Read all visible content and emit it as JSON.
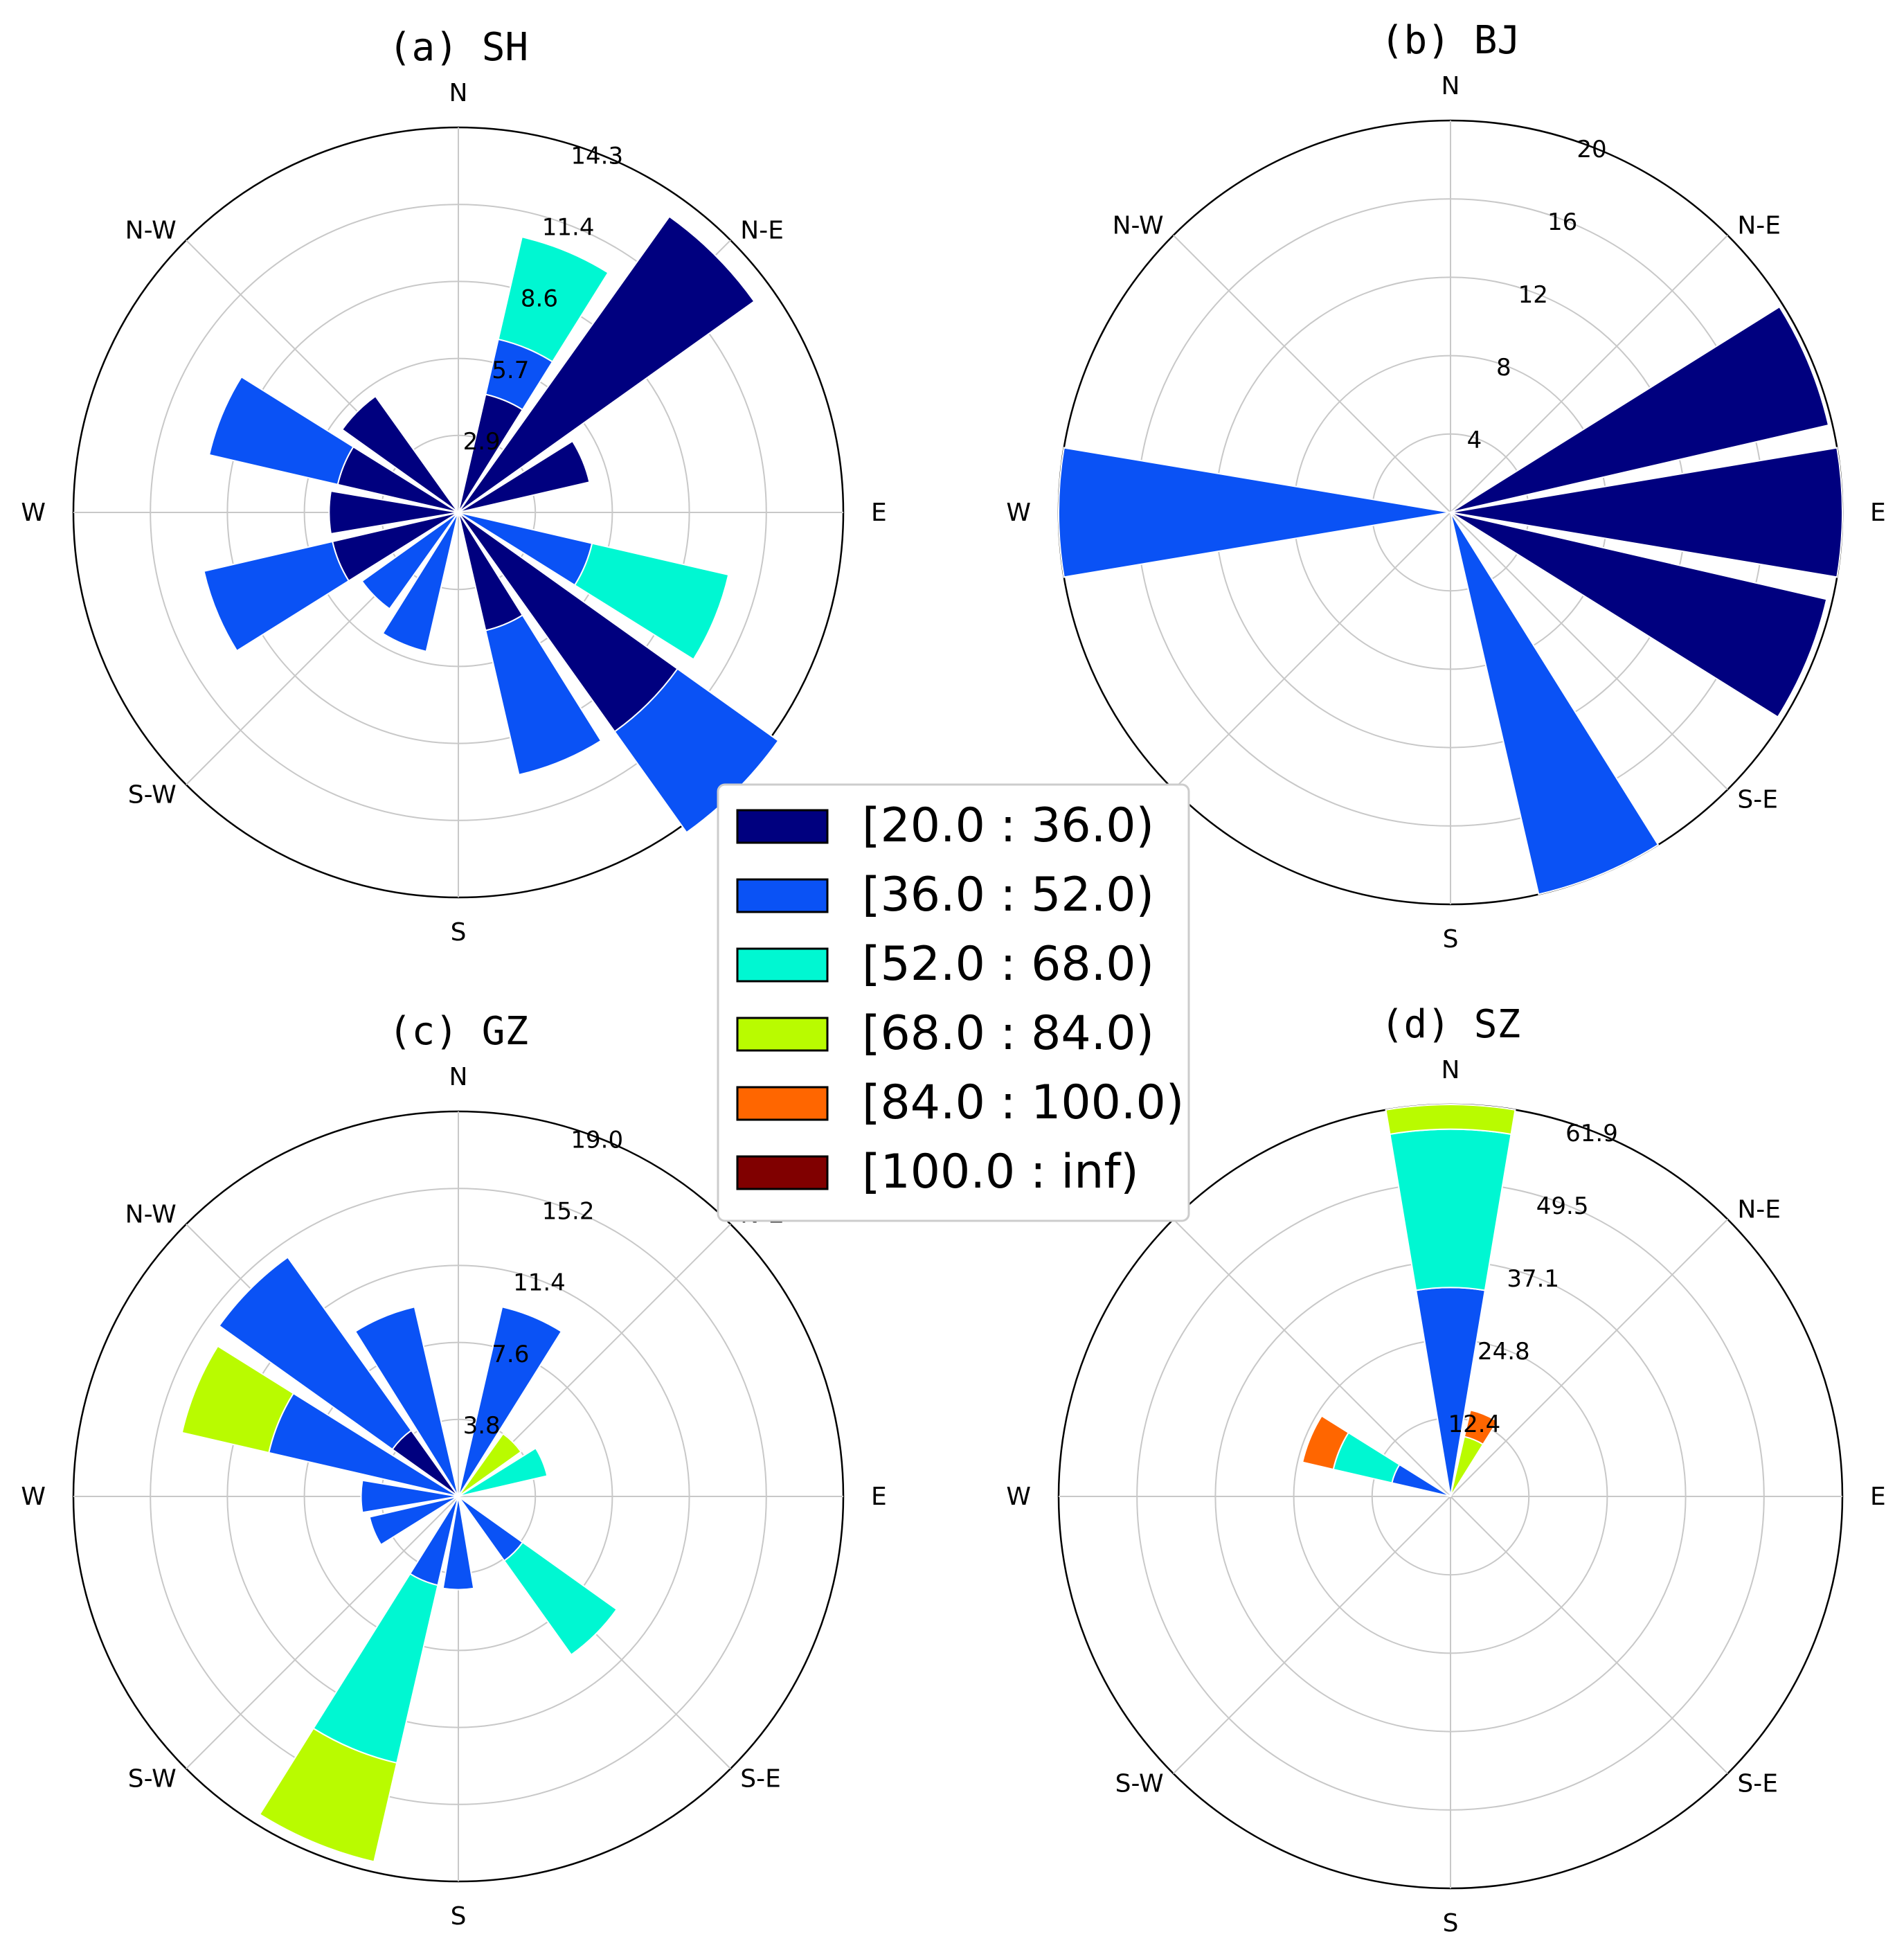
{
  "figure": {
    "legend": {
      "placement": "center",
      "entries": [
        {
          "label": "[20.0 : 36.0)",
          "color": "#00007f"
        },
        {
          "label": "[36.0 : 52.0)",
          "color": "#0a52f5"
        },
        {
          "label": "[52.0 : 68.0)",
          "color": "#00f7d2"
        },
        {
          "label": "[68.0 : 84.0)",
          "color": "#b9fb00"
        },
        {
          "label": "[84.0 : 100.0)",
          "color": "#ff6600"
        },
        {
          "label": "[100.0 : inf)",
          "color": "#800000"
        }
      ]
    },
    "directions": [
      "N",
      "N-E",
      "E",
      "S-E",
      "S",
      "S-W",
      "W",
      "N-W"
    ]
  },
  "chart_data": [
    {
      "type": "windrose",
      "title": "(a)  SH",
      "grid": true,
      "rlim": [
        0,
        14.3
      ],
      "rticks": [
        "2.9",
        "5.7",
        "8.6",
        "11.4",
        "14.3"
      ],
      "rtick_values": [
        2.86,
        5.72,
        8.58,
        11.44,
        14.3
      ],
      "sectors": [
        {
          "direction_deg": 22.5,
          "stacks": [
            {
              "bin": 0,
              "r": [
                0,
                4.5
              ]
            },
            {
              "bin": 1,
              "r": [
                4.5,
                6.6
              ]
            },
            {
              "bin": 2,
              "r": [
                6.6,
                10.5
              ]
            }
          ]
        },
        {
          "direction_deg": 45,
          "stacks": [
            {
              "bin": 0,
              "r": [
                0,
                13.5
              ]
            }
          ]
        },
        {
          "direction_deg": 67.5,
          "stacks": [
            {
              "bin": 0,
              "r": [
                0,
                5.0
              ]
            }
          ]
        },
        {
          "direction_deg": 112.5,
          "stacks": [
            {
              "bin": 1,
              "r": [
                0,
                5.1
              ]
            },
            {
              "bin": 2,
              "r": [
                5.1,
                10.3
              ]
            }
          ]
        },
        {
          "direction_deg": 135,
          "stacks": [
            {
              "bin": 0,
              "r": [
                0,
                10.0
              ]
            },
            {
              "bin": 1,
              "r": [
                10.0,
                14.6
              ]
            }
          ]
        },
        {
          "direction_deg": 157.5,
          "stacks": [
            {
              "bin": 0,
              "r": [
                0,
                4.5
              ]
            },
            {
              "bin": 1,
              "r": [
                4.5,
                10.0
              ]
            }
          ]
        },
        {
          "direction_deg": 202.5,
          "stacks": [
            {
              "bin": 1,
              "r": [
                0,
                5.3
              ]
            }
          ]
        },
        {
          "direction_deg": 225,
          "stacks": [
            {
              "bin": 1,
              "r": [
                0,
                4.4
              ]
            }
          ]
        },
        {
          "direction_deg": 247.5,
          "stacks": [
            {
              "bin": 0,
              "r": [
                0,
                4.8
              ]
            },
            {
              "bin": 1,
              "r": [
                4.8,
                9.7
              ]
            }
          ]
        },
        {
          "direction_deg": 270,
          "stacks": [
            {
              "bin": 0,
              "r": [
                0,
                4.8
              ]
            }
          ]
        },
        {
          "direction_deg": 292.5,
          "stacks": [
            {
              "bin": 0,
              "r": [
                0,
                4.6
              ]
            },
            {
              "bin": 1,
              "r": [
                4.6,
                9.5
              ]
            }
          ]
        },
        {
          "direction_deg": 315,
          "stacks": [
            {
              "bin": 0,
              "r": [
                0,
                5.3
              ]
            }
          ]
        }
      ]
    },
    {
      "type": "windrose",
      "title": "(b)  BJ",
      "grid": true,
      "rlim": [
        0,
        20
      ],
      "rticks": [
        "4",
        "8",
        "12",
        "16",
        "20"
      ],
      "rtick_values": [
        4,
        8,
        12,
        16,
        20
      ],
      "sectors": [
        {
          "direction_deg": 67.5,
          "stacks": [
            {
              "bin": 0,
              "r": [
                0,
                19.8
              ]
            }
          ]
        },
        {
          "direction_deg": 90,
          "stacks": [
            {
              "bin": 0,
              "r": [
                0,
                20.0
              ]
            }
          ]
        },
        {
          "direction_deg": 112.5,
          "stacks": [
            {
              "bin": 0,
              "r": [
                0,
                19.7
              ]
            }
          ]
        },
        {
          "direction_deg": 157.5,
          "stacks": [
            {
              "bin": 1,
              "r": [
                0,
                20.0
              ]
            }
          ]
        },
        {
          "direction_deg": 270,
          "stacks": [
            {
              "bin": 1,
              "r": [
                0,
                20.0
              ]
            }
          ]
        }
      ]
    },
    {
      "type": "windrose",
      "title": "(c)  GZ",
      "grid": true,
      "rlim": [
        0,
        19.0
      ],
      "rticks": [
        "3.8",
        "7.6",
        "11.4",
        "15.2",
        "19.0"
      ],
      "rtick_values": [
        3.8,
        7.6,
        11.4,
        15.2,
        19.0
      ],
      "sectors": [
        {
          "direction_deg": 22.5,
          "stacks": [
            {
              "bin": 1,
              "r": [
                0,
                9.6
              ]
            }
          ]
        },
        {
          "direction_deg": 45,
          "stacks": [
            {
              "bin": 3,
              "r": [
                0,
                3.8
              ]
            }
          ]
        },
        {
          "direction_deg": 67.5,
          "stacks": [
            {
              "bin": 2,
              "r": [
                0,
                4.5
              ]
            }
          ]
        },
        {
          "direction_deg": 135,
          "stacks": [
            {
              "bin": 1,
              "r": [
                0,
                3.9
              ]
            },
            {
              "bin": 2,
              "r": [
                3.9,
                9.6
              ]
            }
          ]
        },
        {
          "direction_deg": 180,
          "stacks": [
            {
              "bin": 1,
              "r": [
                0,
                4.6
              ]
            }
          ]
        },
        {
          "direction_deg": 202.5,
          "stacks": [
            {
              "bin": 1,
              "r": [
                0,
                4.5
              ]
            },
            {
              "bin": 2,
              "r": [
                4.5,
                13.5
              ]
            },
            {
              "bin": 3,
              "r": [
                13.5,
                18.5
              ]
            }
          ]
        },
        {
          "direction_deg": 247.5,
          "stacks": [
            {
              "bin": 1,
              "r": [
                0,
                4.5
              ]
            }
          ]
        },
        {
          "direction_deg": 270,
          "stacks": [
            {
              "bin": 1,
              "r": [
                0,
                4.8
              ]
            }
          ]
        },
        {
          "direction_deg": 292.5,
          "stacks": [
            {
              "bin": 1,
              "r": [
                0,
                9.6
              ]
            },
            {
              "bin": 3,
              "r": [
                9.6,
                14.0
              ]
            }
          ]
        },
        {
          "direction_deg": 315,
          "stacks": [
            {
              "bin": 0,
              "r": [
                0,
                4.0
              ]
            },
            {
              "bin": 1,
              "r": [
                4.0,
                14.5
              ]
            }
          ]
        },
        {
          "direction_deg": 337.5,
          "stacks": [
            {
              "bin": 1,
              "r": [
                0,
                9.6
              ]
            }
          ]
        }
      ]
    },
    {
      "type": "windrose",
      "title": "(d)  SZ",
      "grid": true,
      "rlim": [
        0,
        61.9
      ],
      "rticks": [
        "12.4",
        "24.8",
        "37.1",
        "49.5",
        "61.9"
      ],
      "rtick_values": [
        12.38,
        24.76,
        37.14,
        49.52,
        61.9
      ],
      "sectors": [
        {
          "direction_deg": 0,
          "stacks": [
            {
              "bin": 1,
              "r": [
                0,
                33.0
              ]
            },
            {
              "bin": 2,
              "r": [
                33.0,
                58.0
              ]
            },
            {
              "bin": 3,
              "r": [
                58.0,
                61.9
              ]
            }
          ]
        },
        {
          "direction_deg": 22.5,
          "stacks": [
            {
              "bin": 3,
              "r": [
                0,
                9.7
              ]
            },
            {
              "bin": 4,
              "r": [
                9.7,
                14.0
              ]
            }
          ]
        },
        {
          "direction_deg": 292.5,
          "stacks": [
            {
              "bin": 1,
              "r": [
                0,
                9.5
              ]
            },
            {
              "bin": 2,
              "r": [
                9.5,
                19.0
              ]
            },
            {
              "bin": 4,
              "r": [
                19.0,
                24.0
              ]
            }
          ]
        }
      ]
    }
  ]
}
